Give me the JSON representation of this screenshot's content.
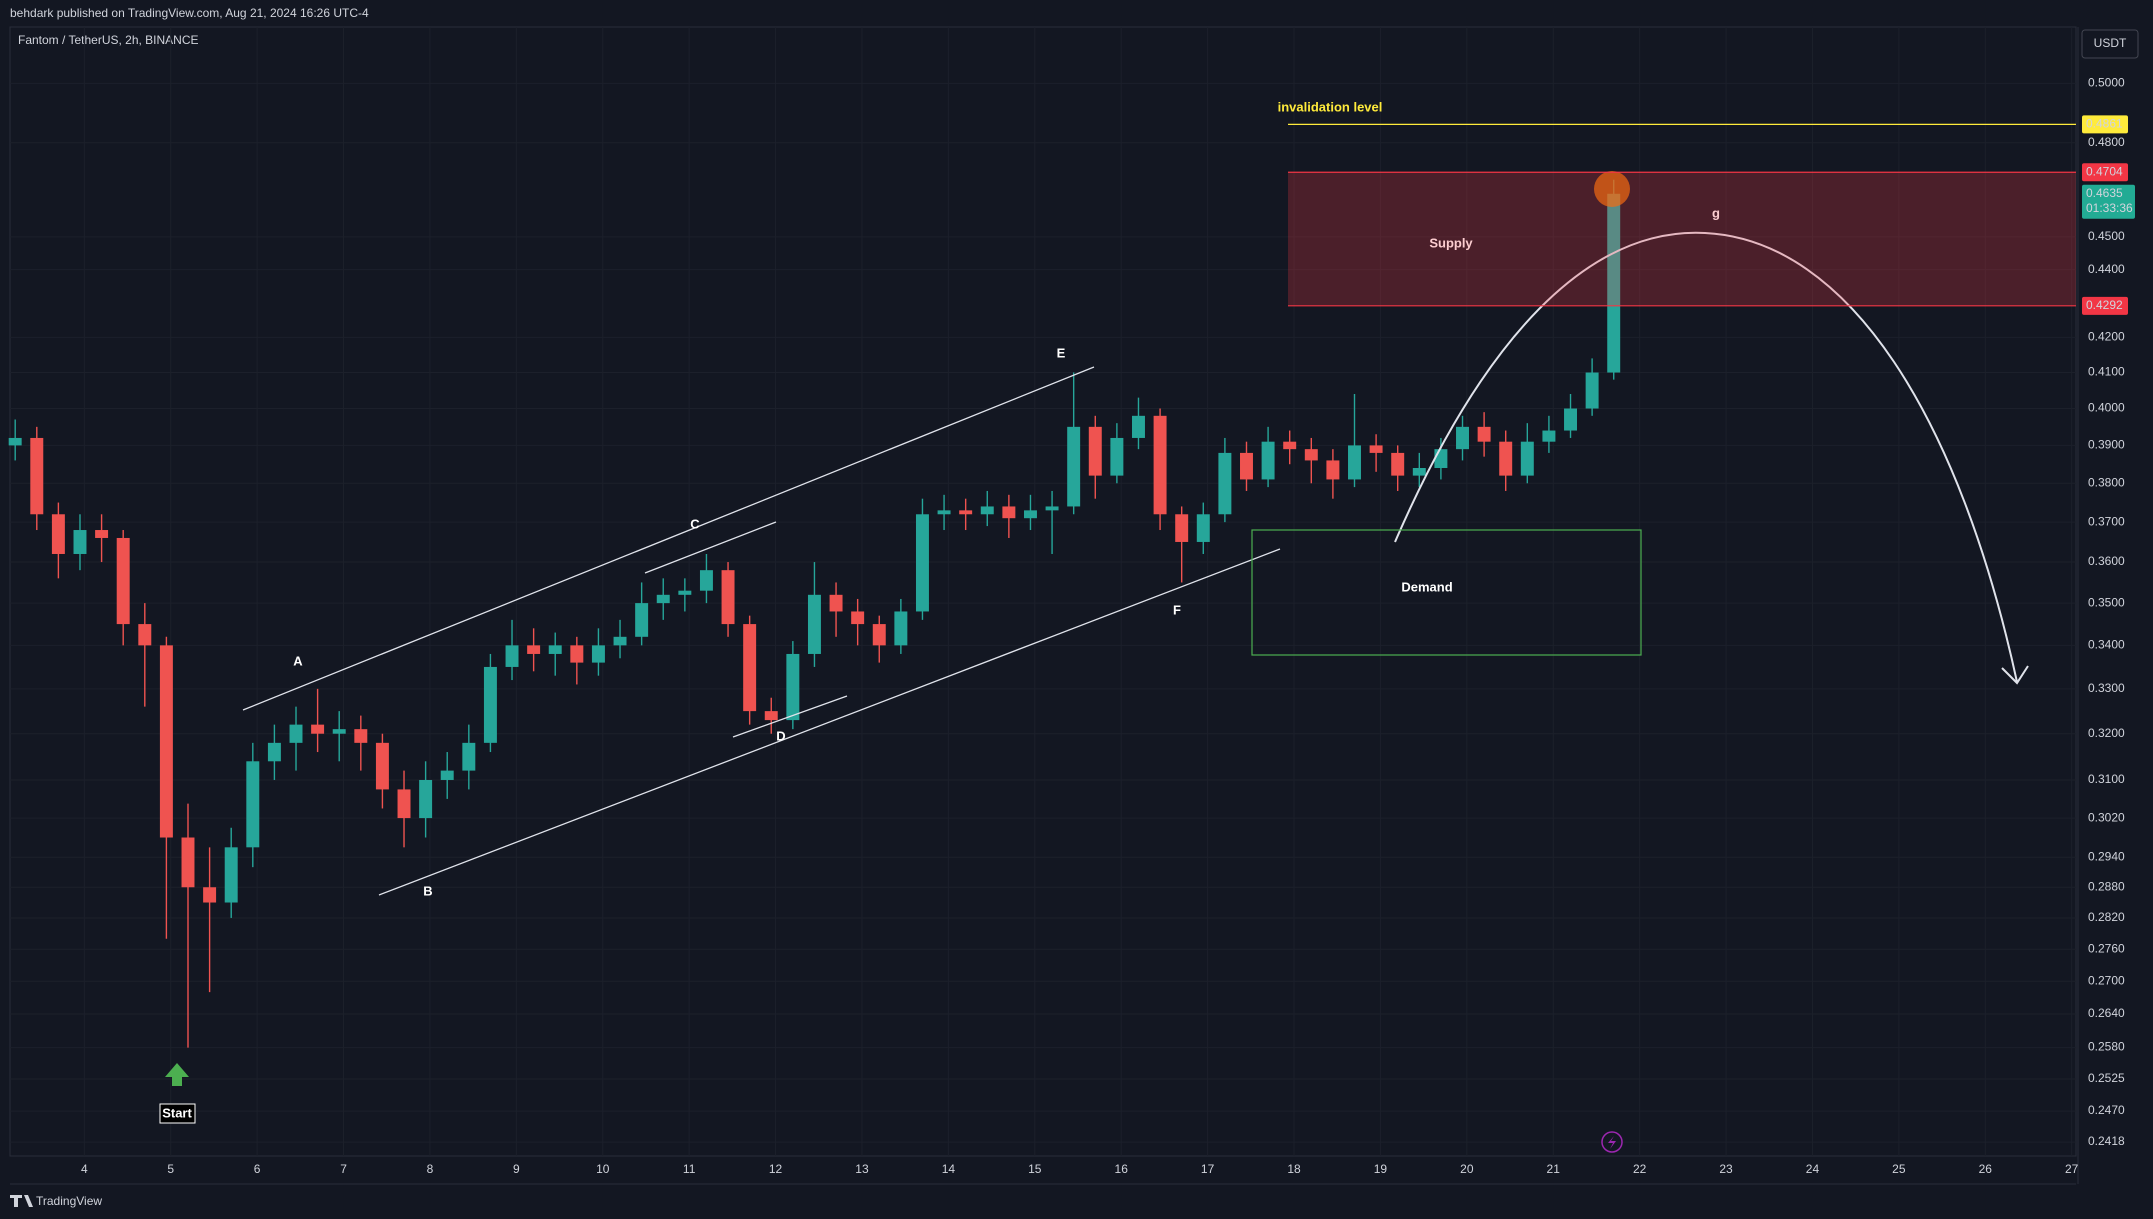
{
  "header": {
    "publisher": "behdark published on TradingView.com, Aug 21, 2024 16:26 UTC-4",
    "logo": "TradingView"
  },
  "chart_data": {
    "type": "candlestick",
    "title": "Fantom / TetherUS, 2h, BINANCE",
    "currency": "USDT",
    "x": [
      3.2,
      3.45,
      3.7,
      3.95,
      4.2,
      4.45,
      4.7,
      4.95,
      5.2,
      5.45,
      5.7,
      5.95,
      6.2,
      6.45,
      6.7,
      6.95,
      7.2,
      7.45,
      7.7,
      7.95,
      8.2,
      8.45,
      8.7,
      8.95,
      9.2,
      9.45,
      9.7,
      9.95,
      10.2,
      10.45,
      10.7,
      10.95,
      11.2,
      11.45,
      11.7,
      11.95,
      12.2,
      12.45,
      12.7,
      12.95,
      13.2,
      13.45,
      13.7,
      13.95,
      14.2,
      14.45,
      14.7,
      14.95,
      15.2,
      15.45,
      15.7,
      15.95,
      16.2,
      16.45,
      16.7,
      16.95,
      17.2,
      17.45,
      17.7,
      17.95,
      18.2,
      18.45,
      18.7,
      18.95,
      19.2,
      19.45,
      19.7,
      19.95,
      20.2,
      20.45,
      20.7,
      20.95,
      21.2,
      21.45,
      21.7
    ],
    "open": [
      0.39,
      0.392,
      0.372,
      0.362,
      0.368,
      0.366,
      0.345,
      0.34,
      0.298,
      0.288,
      0.285,
      0.296,
      0.314,
      0.318,
      0.322,
      0.32,
      0.321,
      0.318,
      0.308,
      0.302,
      0.31,
      0.312,
      0.318,
      0.335,
      0.34,
      0.338,
      0.34,
      0.336,
      0.34,
      0.342,
      0.35,
      0.352,
      0.353,
      0.358,
      0.345,
      0.325,
      0.323,
      0.338,
      0.352,
      0.348,
      0.345,
      0.34,
      0.348,
      0.372,
      0.373,
      0.372,
      0.374,
      0.371,
      0.373,
      0.374,
      0.395,
      0.382,
      0.392,
      0.398,
      0.372,
      0.365,
      0.372,
      0.388,
      0.381,
      0.391,
      0.389,
      0.386,
      0.381,
      0.39,
      0.388,
      0.382,
      0.384,
      0.389,
      0.395,
      0.391,
      0.382,
      0.391,
      0.394,
      0.4,
      0.41
    ],
    "high": [
      0.397,
      0.395,
      0.375,
      0.372,
      0.372,
      0.368,
      0.35,
      0.342,
      0.305,
      0.296,
      0.3,
      0.318,
      0.322,
      0.326,
      0.33,
      0.325,
      0.324,
      0.32,
      0.312,
      0.314,
      0.316,
      0.322,
      0.338,
      0.346,
      0.344,
      0.343,
      0.342,
      0.344,
      0.346,
      0.355,
      0.356,
      0.356,
      0.362,
      0.36,
      0.347,
      0.328,
      0.341,
      0.36,
      0.355,
      0.351,
      0.347,
      0.351,
      0.376,
      0.377,
      0.376,
      0.378,
      0.377,
      0.377,
      0.378,
      0.41,
      0.398,
      0.396,
      0.403,
      0.4,
      0.374,
      0.375,
      0.392,
      0.391,
      0.395,
      0.394,
      0.392,
      0.389,
      0.404,
      0.393,
      0.39,
      0.388,
      0.392,
      0.398,
      0.399,
      0.394,
      0.396,
      0.398,
      0.404,
      0.414,
      0.468
    ],
    "low": [
      0.386,
      0.368,
      0.356,
      0.358,
      0.36,
      0.34,
      0.326,
      0.278,
      0.258,
      0.268,
      0.282,
      0.292,
      0.31,
      0.312,
      0.316,
      0.314,
      0.312,
      0.304,
      0.296,
      0.298,
      0.306,
      0.308,
      0.316,
      0.332,
      0.334,
      0.333,
      0.331,
      0.333,
      0.337,
      0.34,
      0.346,
      0.348,
      0.35,
      0.342,
      0.322,
      0.32,
      0.321,
      0.335,
      0.342,
      0.34,
      0.336,
      0.338,
      0.346,
      0.368,
      0.368,
      0.369,
      0.366,
      0.368,
      0.362,
      0.372,
      0.376,
      0.38,
      0.389,
      0.368,
      0.355,
      0.362,
      0.37,
      0.378,
      0.379,
      0.385,
      0.38,
      0.376,
      0.379,
      0.383,
      0.378,
      0.379,
      0.381,
      0.386,
      0.387,
      0.378,
      0.38,
      0.388,
      0.392,
      0.398,
      0.408
    ],
    "close": [
      0.392,
      0.372,
      0.362,
      0.368,
      0.366,
      0.345,
      0.34,
      0.298,
      0.288,
      0.285,
      0.296,
      0.314,
      0.318,
      0.322,
      0.32,
      0.321,
      0.318,
      0.308,
      0.302,
      0.31,
      0.312,
      0.318,
      0.335,
      0.34,
      0.338,
      0.34,
      0.336,
      0.34,
      0.342,
      0.35,
      0.352,
      0.353,
      0.358,
      0.345,
      0.325,
      0.323,
      0.338,
      0.352,
      0.348,
      0.345,
      0.34,
      0.348,
      0.372,
      0.373,
      0.372,
      0.374,
      0.371,
      0.373,
      0.374,
      0.395,
      0.382,
      0.392,
      0.398,
      0.372,
      0.365,
      0.372,
      0.388,
      0.381,
      0.391,
      0.389,
      0.386,
      0.381,
      0.39,
      0.388,
      0.382,
      0.384,
      0.389,
      0.395,
      0.391,
      0.382,
      0.391,
      0.394,
      0.4,
      0.41,
      0.4635
    ],
    "up_color": "#26a69a",
    "down_color": "#ef5350",
    "xlim": [
      3.14,
      27.05
    ],
    "xticks": [
      4,
      5,
      6,
      7,
      8,
      9,
      10,
      11,
      12,
      13,
      14,
      15,
      16,
      17,
      18,
      19,
      20,
      21,
      22,
      23,
      24,
      25,
      26,
      27
    ],
    "ylim": [
      0.2395,
      0.5197
    ],
    "log_y": true,
    "grid": true,
    "yticks": [
      {
        "value": 0.5,
        "label": "0.5000"
      },
      {
        "value": 0.48,
        "label": "0.4800"
      },
      {
        "value": 0.45,
        "label": "0.4500"
      },
      {
        "value": 0.44,
        "label": "0.4400"
      },
      {
        "value": 0.42,
        "label": "0.4200"
      },
      {
        "value": 0.41,
        "label": "0.4100"
      },
      {
        "value": 0.4,
        "label": "0.4000"
      },
      {
        "value": 0.39,
        "label": "0.3900"
      },
      {
        "value": 0.38,
        "label": "0.3800"
      },
      {
        "value": 0.37,
        "label": "0.3700"
      },
      {
        "value": 0.36,
        "label": "0.3600"
      },
      {
        "value": 0.35,
        "label": "0.3500"
      },
      {
        "value": 0.34,
        "label": "0.3400"
      },
      {
        "value": 0.33,
        "label": "0.3300"
      },
      {
        "value": 0.32,
        "label": "0.3200"
      },
      {
        "value": 0.31,
        "label": "0.3100"
      },
      {
        "value": 0.302,
        "label": "0.3020"
      },
      {
        "value": 0.294,
        "label": "0.2940"
      },
      {
        "value": 0.288,
        "label": "0.2880"
      },
      {
        "value": 0.282,
        "label": "0.2820"
      },
      {
        "value": 0.276,
        "label": "0.2760"
      },
      {
        "value": 0.27,
        "label": "0.2700"
      },
      {
        "value": 0.264,
        "label": "0.2640"
      },
      {
        "value": 0.258,
        "label": "0.2580"
      },
      0.2525,
      {
        "value": 0.247,
        "label": "0.2470"
      },
      0.2418
    ],
    "levels": [
      {
        "value": 0.4861,
        "color": "#ffeb3b"
      },
      {
        "value": 0.4704,
        "color": "#f23645"
      },
      {
        "value": 0.4635,
        "color": "#22ab94",
        "countdown": "01:33:36"
      },
      {
        "value": 0.4292,
        "color": "#f23645"
      }
    ],
    "annotations": [
      "A",
      "B",
      "C",
      "D",
      "E",
      "F",
      "g",
      "Supply",
      "Demand",
      "invalidation level",
      "Start"
    ]
  }
}
